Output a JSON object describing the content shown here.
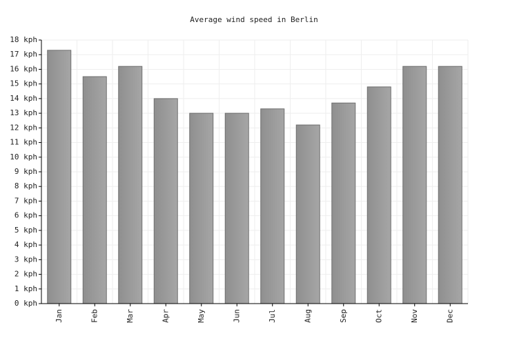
{
  "chart_data": {
    "type": "bar",
    "title": "Average wind speed in Berlin",
    "categories": [
      "Jan",
      "Feb",
      "Mar",
      "Apr",
      "May",
      "Jun",
      "Jul",
      "Aug",
      "Sep",
      "Oct",
      "Nov",
      "Dec"
    ],
    "values": [
      17.3,
      15.5,
      16.2,
      14.0,
      13.0,
      13.0,
      13.3,
      12.2,
      13.7,
      14.8,
      16.2,
      16.2
    ],
    "color": "#a6a6a6",
    "ylim": [
      0,
      18
    ],
    "yticks": [
      {
        "value": 0,
        "label": "0 kph"
      },
      {
        "value": 1,
        "label": "1 kph"
      },
      {
        "value": 2,
        "label": "2 kph"
      },
      {
        "value": 3,
        "label": "3 kph"
      },
      {
        "value": 4,
        "label": "4 kph"
      },
      {
        "value": 5,
        "label": "5 kph"
      },
      {
        "value": 6,
        "label": "6 kph"
      },
      {
        "value": 7,
        "label": "7 kph"
      },
      {
        "value": 8,
        "label": "8 kph"
      },
      {
        "value": 9,
        "label": "9 kph"
      },
      {
        "value": 10,
        "label": "10 kph"
      },
      {
        "value": 11,
        "label": "11 kph"
      },
      {
        "value": 12,
        "label": "12 kph"
      },
      {
        "value": 13,
        "label": "13 kph"
      },
      {
        "value": 14,
        "label": "14 kph"
      },
      {
        "value": 15,
        "label": "15 kph"
      },
      {
        "value": 16,
        "label": "16 kph"
      },
      {
        "value": 17,
        "label": "17 kph"
      },
      {
        "value": 18,
        "label": "18 kph"
      }
    ],
    "grid": true
  }
}
